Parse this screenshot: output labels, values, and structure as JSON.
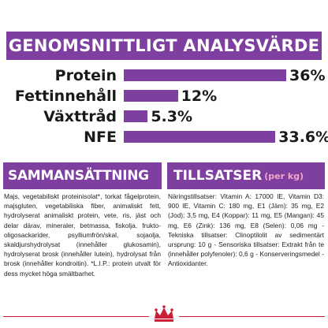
{
  "theme": {
    "accent": "#7f3fa0",
    "footer_red": "#cc1f36"
  },
  "title": "GENOMSNITTLIGT ANALYSVÄRDE",
  "chart_data": {
    "type": "bar",
    "categories": [
      "Protein",
      "Fettinnehåll",
      "Växttråd",
      "NFE"
    ],
    "values": [
      36,
      12,
      5.3,
      33.6
    ],
    "value_labels": [
      "36%",
      "12%",
      "5.3%",
      "33.6%"
    ],
    "title": "GENOMSNITTLIGT ANALYSVÄRDE",
    "xlabel": "",
    "ylabel": "",
    "xlim": [
      0,
      36
    ]
  },
  "composition": {
    "heading": "SAMMANSÄTTNING",
    "text": "Majs, vegetabiliskt proteinisolat*, torkat fågelprotein, majsgluten, vegetabiliska fiber, animaliskt fett, hydrolyserat animaliskt protein, vete, ris, jäst och delar därav, mineraler, betmassa, fiskolja, frukto-oligosackarider, psylliumfrön/skal, sojaolja, skaldjurshydrolysat (innehåller glukosamin), hydrolyserat brosk (innehåller lutein), hydrolysat från brosk (innehåller kondroitin). *L.I.P.: protein utvalt för dess mycket höga smältbarhet."
  },
  "additives": {
    "heading": "TILLSATSER",
    "heading_unit": "(per kg)",
    "text": "Näringstillsatser: Vitamin A: 17000 IE, Vitamin D3: 900 IE, Vitamin C: 180 mg, E1 (Järn): 35 mg, E2 (Jod): 3,5 mg, E4 (Koppar): 11 mg, E5 (Mangan): 45 mg, E6 (Zink): 136 mg, E8 (Selen): 0,06 mg - Tekniska tillsatser: Clinoptilolit av sedimentärt ursprung: 10 g - Sensoriska tillsatser: Extrakt från te (innehåller polyfenoler): 0,6 g - Konserveringsmedel - Antioxidanter."
  },
  "logo": {
    "icon": "royal-crown-logo-icon"
  }
}
